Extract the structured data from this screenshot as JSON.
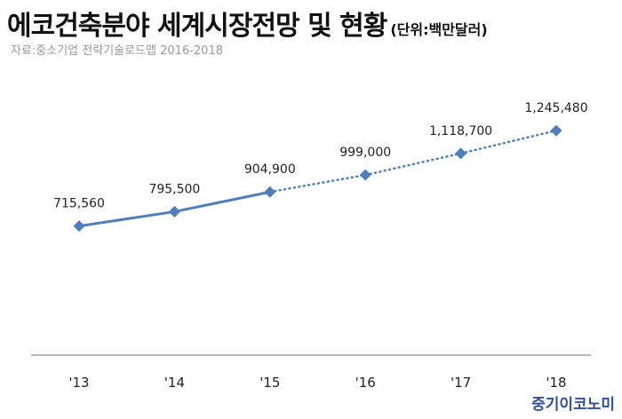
{
  "header": {
    "title": "에코건축분야 세계시장전망 및 현황",
    "unit": "(단위:백만달러)",
    "source": "자료:중소기업 전략기술로드맵 2016-2018"
  },
  "brand": "중기이코노미",
  "colors": {
    "series": "#4f7fba",
    "axis": "#9e9e9e"
  },
  "chart_data": {
    "type": "line",
    "title": "에코건축분야 세계시장전망 및 현황",
    "xlabel": "",
    "ylabel": "",
    "categories": [
      "'13",
      "'14",
      "'15",
      "'16",
      "'17",
      "'18"
    ],
    "series": [
      {
        "values": [
          715560,
          795500,
          904900,
          999000,
          1118700,
          1245480
        ],
        "labels": [
          "715,560",
          "795,500",
          "904,900",
          "999,000",
          "1,118,700",
          "1,245,480"
        ],
        "line_style": [
          "solid",
          "solid",
          "dotted",
          "dotted",
          "dotted"
        ],
        "marker": "diamond"
      }
    ],
    "ylim": [
      0,
      1300000
    ],
    "grid": false,
    "legend": "none"
  }
}
